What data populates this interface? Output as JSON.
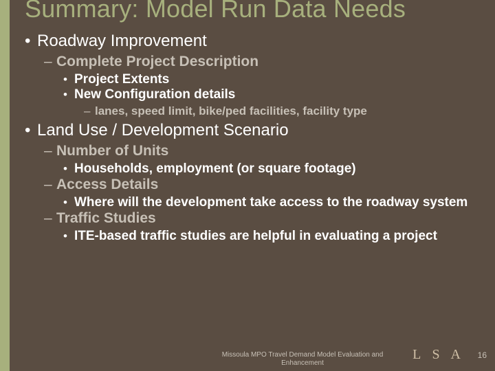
{
  "colors": {
    "background": "#5a4d42",
    "accent_band": "#a7b07d",
    "title": "#a7b07d",
    "body_text": "#ffffff",
    "muted_text": "#c7c0b6",
    "logo": "#cfbfa6"
  },
  "title": "Summary: Model Run Data Needs",
  "bullets": {
    "roadway": {
      "label": "Roadway Improvement",
      "complete_desc": {
        "label": "Complete Project Description",
        "extents": "Project Extents",
        "config": {
          "label": "New Configuration details",
          "detail": "lanes, speed limit, bike/ped facilities, facility type"
        }
      }
    },
    "landuse": {
      "label": "Land Use / Development Scenario",
      "units": {
        "label": "Number of Units",
        "detail": "Households, employment (or square footage)"
      },
      "access": {
        "label": "Access Details",
        "detail": "Where will the development take access to the roadway system"
      },
      "traffic": {
        "label": "Traffic Studies",
        "detail": "ITE-based traffic studies are helpful in evaluating a project"
      }
    }
  },
  "footer": {
    "center": "Missoula MPO Travel Demand Model Evaluation and Enhancement",
    "logo": "L S A",
    "page": "16"
  }
}
